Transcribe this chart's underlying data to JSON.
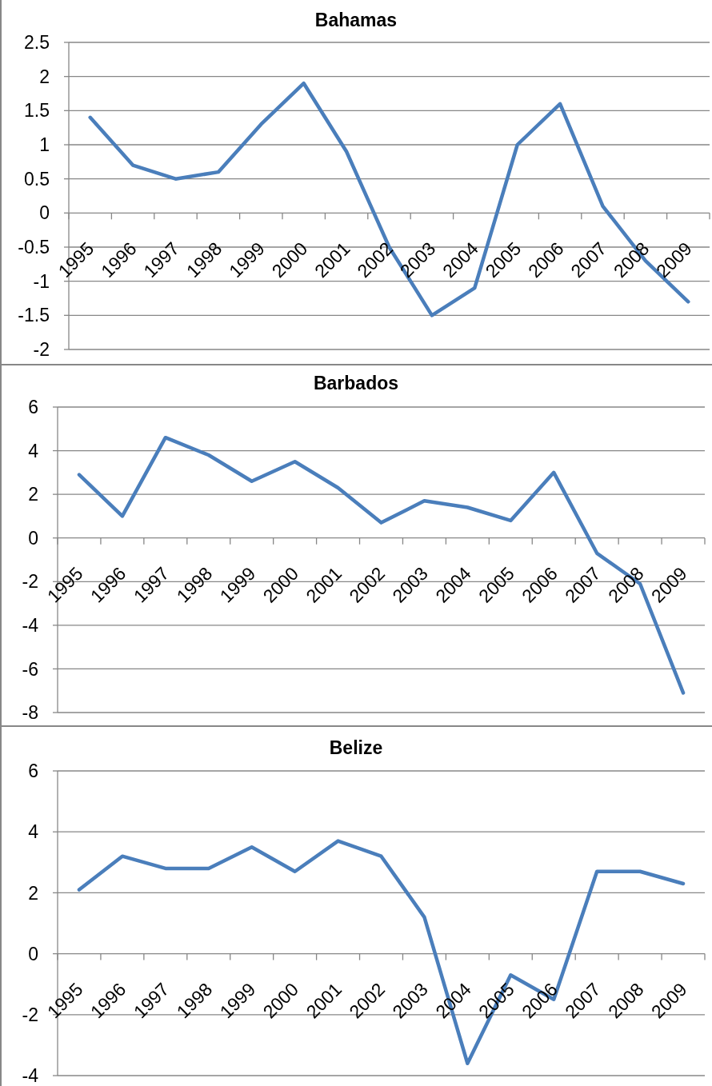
{
  "chart_data": [
    {
      "type": "line",
      "title": "Bahamas",
      "categories": [
        "1995",
        "1996",
        "1997",
        "1998",
        "1999",
        "2000",
        "2001",
        "2002",
        "2003",
        "2004",
        "2005",
        "2006",
        "2007",
        "2008",
        "2009"
      ],
      "series": [
        {
          "color": "#4a7ebb",
          "values": [
            1.4,
            0.7,
            0.5,
            0.6,
            1.3,
            1.9,
            0.9,
            -0.5,
            -1.5,
            -1.1,
            1.0,
            1.6,
            0.1,
            -0.7,
            -1.3
          ]
        }
      ],
      "ylim": [
        -2,
        2.5
      ],
      "yticks": [
        -2,
        -1.5,
        -1,
        -0.5,
        0,
        0.5,
        1,
        1.5,
        2,
        2.5
      ],
      "grid": "y",
      "marker": "none"
    },
    {
      "type": "line",
      "title": "Barbados",
      "categories": [
        "1995",
        "1996",
        "1997",
        "1998",
        "1999",
        "2000",
        "2001",
        "2002",
        "2003",
        "2004",
        "2005",
        "2006",
        "2007",
        "2008",
        "2009"
      ],
      "series": [
        {
          "color": "#4a7ebb",
          "values": [
            2.9,
            1.0,
            4.6,
            3.8,
            2.6,
            3.5,
            2.3,
            0.7,
            1.7,
            1.4,
            0.8,
            3.0,
            -0.7,
            -2.1,
            -7.1
          ]
        }
      ],
      "ylim": [
        -8,
        6
      ],
      "yticks": [
        -8,
        -6,
        -4,
        -2,
        0,
        2,
        4,
        6
      ],
      "grid": "y",
      "marker": "none"
    },
    {
      "type": "line",
      "title": "Belize",
      "categories": [
        "1995",
        "1996",
        "1997",
        "1998",
        "1999",
        "2000",
        "2001",
        "2002",
        "2003",
        "2004",
        "2005",
        "2006",
        "2007",
        "2008",
        "2009"
      ],
      "series": [
        {
          "color": "#4a7ebb",
          "values": [
            2.1,
            3.2,
            2.8,
            2.8,
            3.5,
            2.7,
            3.7,
            3.2,
            1.2,
            -3.6,
            -0.7,
            -1.5,
            2.7,
            2.7,
            2.3
          ]
        }
      ],
      "ylim": [
        -4,
        6
      ],
      "yticks": [
        -4,
        -2,
        0,
        2,
        4,
        6
      ],
      "grid": "y",
      "marker": "none"
    }
  ]
}
